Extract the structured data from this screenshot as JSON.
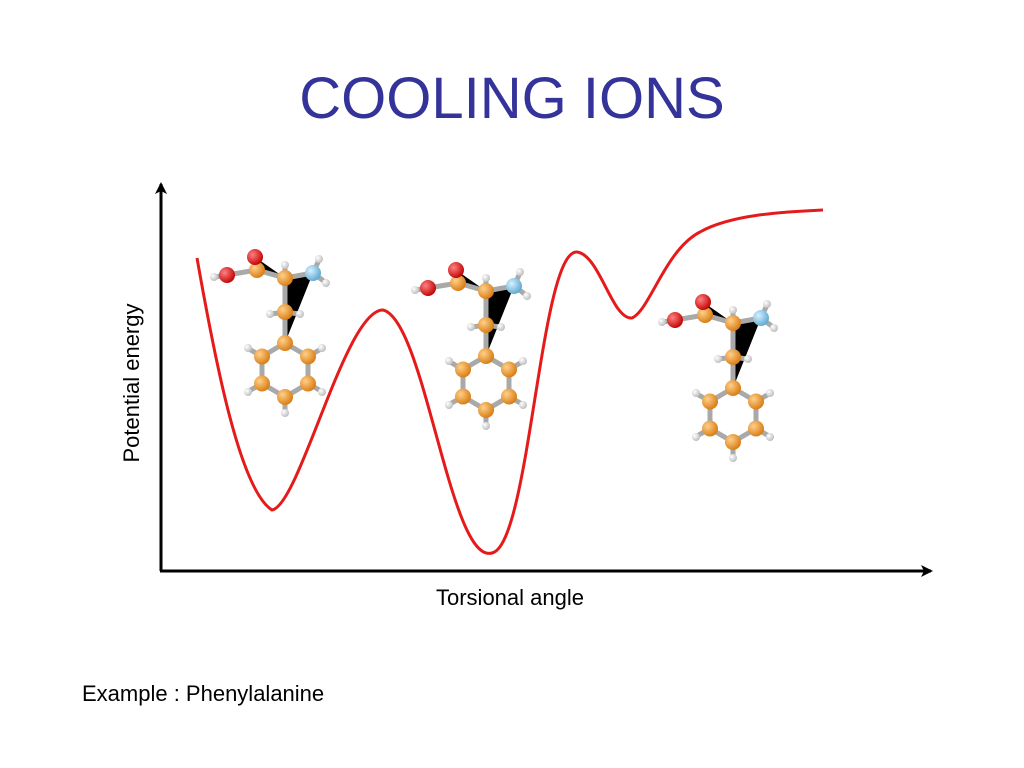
{
  "title": "COOLING IONS",
  "diagram": {
    "y_axis_label": "Potential energy",
    "x_axis_label": "Torsional angle"
  },
  "caption": "Example : Phenylalanine"
}
